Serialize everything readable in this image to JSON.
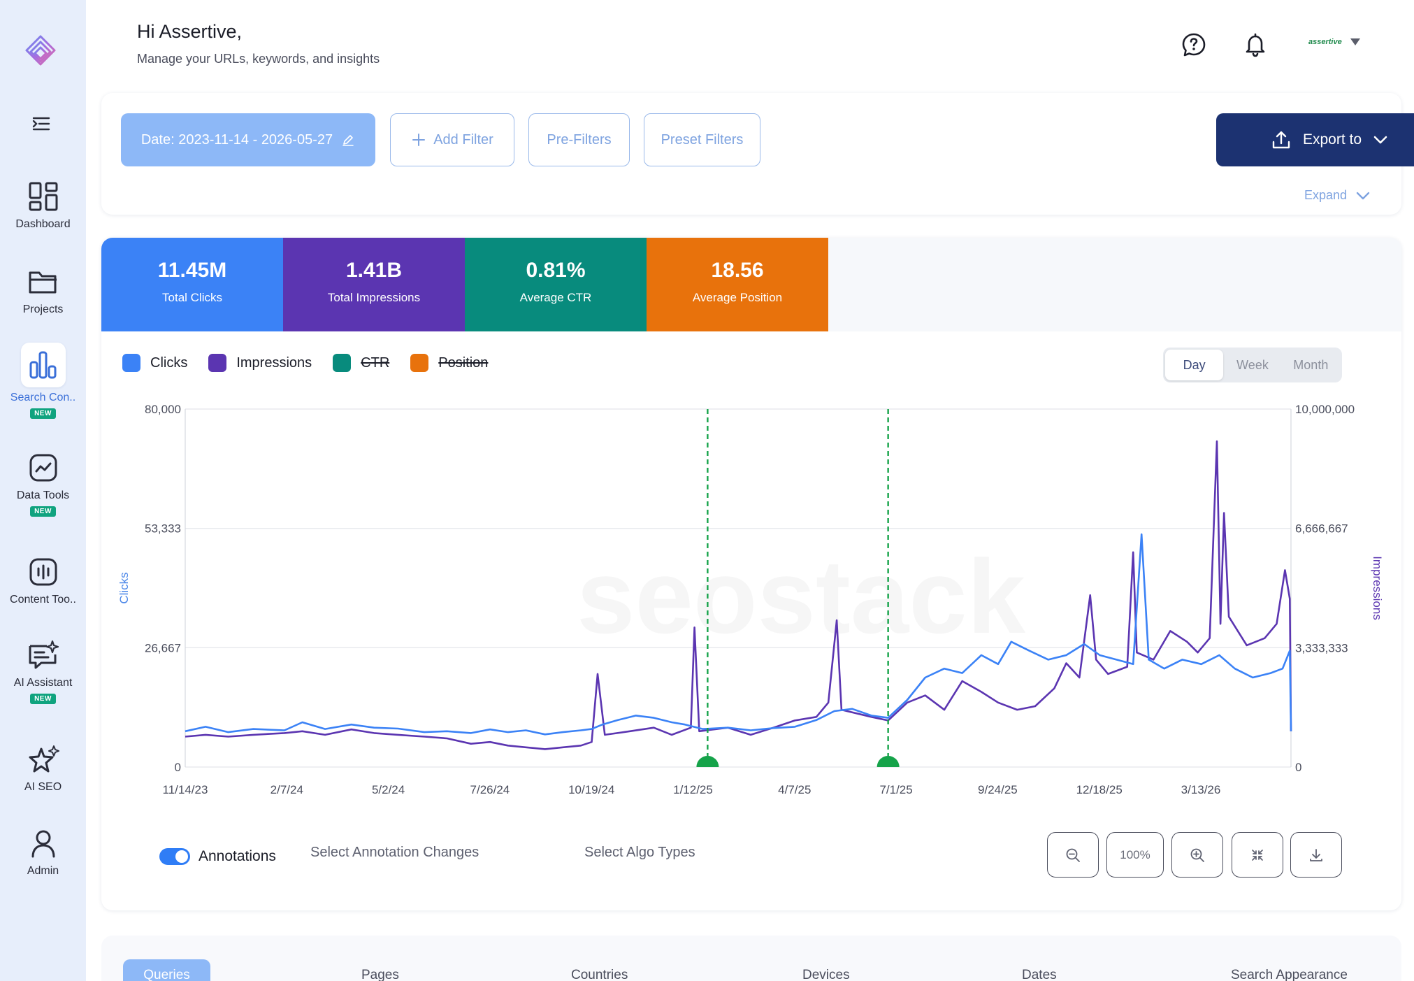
{
  "header": {
    "greeting": "Hi Assertive,",
    "subtitle": "Manage your URLs, keywords, and insights",
    "user_logo_text": "assertive"
  },
  "sidebar": {
    "items": [
      {
        "label": "Dashboard",
        "icon": "dashboard-icon",
        "badge": ""
      },
      {
        "label": "Projects",
        "icon": "folder-icon",
        "badge": ""
      },
      {
        "label": "Search Con..",
        "icon": "bar-chart-icon",
        "badge": "NEW",
        "active": true
      },
      {
        "label": "Data Tools",
        "icon": "trend-icon",
        "badge": "NEW"
      },
      {
        "label": "Content Too..",
        "icon": "audio-bars-icon",
        "badge": ""
      },
      {
        "label": "AI Assistant",
        "icon": "sparkle-chat-icon",
        "badge": "NEW"
      },
      {
        "label": "AI SEO",
        "icon": "sparkle-star-icon",
        "badge": ""
      },
      {
        "label": "Admin",
        "icon": "user-icon",
        "badge": ""
      }
    ]
  },
  "filters": {
    "date_label": "Date: 2023-11-14 - 2026-05-27",
    "add_filter": "Add Filter",
    "pre_filters": "Pre-Filters",
    "preset_filters": "Preset Filters",
    "export_label": "Export to",
    "expand_label": "Expand"
  },
  "kpis": [
    {
      "value": "11.45M",
      "label": "Total Clicks",
      "color": "#3b82f6"
    },
    {
      "value": "1.41B",
      "label": "Total Impressions",
      "color": "#5b35b1"
    },
    {
      "value": "0.81%",
      "label": "Average CTR",
      "color": "#088b7d"
    },
    {
      "value": "18.56",
      "label": "Average Position",
      "color": "#e8720c"
    }
  ],
  "legend": [
    {
      "label": "Clicks",
      "color": "#3b82f6",
      "active": true
    },
    {
      "label": "Impressions",
      "color": "#5b35b1",
      "active": true
    },
    {
      "label": "CTR",
      "color": "#088b7d",
      "active": false
    },
    {
      "label": "Position",
      "color": "#e8720c",
      "active": false
    }
  ],
  "granularity": {
    "options": [
      "Day",
      "Week",
      "Month"
    ],
    "selected": "Day"
  },
  "annotations": {
    "toggle_label": "Annotations",
    "toggle_on": true,
    "changes_placeholder": "Select Annotation Changes",
    "algo_placeholder": "Select Algo Types"
  },
  "zoom": {
    "level": "100%"
  },
  "tabs": [
    "Queries",
    "Pages",
    "Countries",
    "Devices",
    "Dates",
    "Search Appearance"
  ],
  "chart_data": {
    "type": "line",
    "x_ticks": [
      "11/14/23",
      "2/7/24",
      "5/2/24",
      "7/26/24",
      "10/19/24",
      "1/12/25",
      "4/7/25",
      "7/1/25",
      "9/24/25",
      "12/18/25",
      "3/13/26"
    ],
    "y_left": {
      "label": "Clicks",
      "ticks": [
        "0",
        "26,667",
        "53,333",
        "80,000"
      ],
      "range": [
        0,
        80000
      ]
    },
    "y_right": {
      "label": "Impressions",
      "ticks": [
        "0",
        "3,333,333",
        "6,666,667",
        "10,000,000"
      ],
      "range": [
        0,
        10000000
      ]
    },
    "x_range": [
      "2023-11-14",
      "2026-05-27"
    ],
    "annotation_dates": [
      "2025-01-24",
      "2025-06-24"
    ],
    "watermark": "seostack",
    "series": [
      {
        "name": "Clicks",
        "axis": "left",
        "color": "#3b82f6",
        "points": [
          [
            "2023-11-14",
            8000
          ],
          [
            "2023-12-01",
            9000
          ],
          [
            "2023-12-20",
            7800
          ],
          [
            "2024-01-10",
            8500
          ],
          [
            "2024-02-05",
            8200
          ],
          [
            "2024-02-20",
            10000
          ],
          [
            "2024-03-10",
            8500
          ],
          [
            "2024-04-01",
            9500
          ],
          [
            "2024-04-20",
            8800
          ],
          [
            "2024-05-10",
            8600
          ],
          [
            "2024-06-01",
            7800
          ],
          [
            "2024-06-20",
            8000
          ],
          [
            "2024-07-10",
            7600
          ],
          [
            "2024-07-26",
            8400
          ],
          [
            "2024-08-10",
            7800
          ],
          [
            "2024-08-25",
            8200
          ],
          [
            "2024-09-10",
            7300
          ],
          [
            "2024-09-25",
            7800
          ],
          [
            "2024-10-10",
            8200
          ],
          [
            "2024-10-19",
            8500
          ],
          [
            "2024-10-28",
            9500
          ],
          [
            "2024-11-10",
            10500
          ],
          [
            "2024-11-25",
            11500
          ],
          [
            "2024-12-10",
            11000
          ],
          [
            "2024-12-25",
            10000
          ],
          [
            "2025-01-05",
            9500
          ],
          [
            "2025-01-20",
            8500
          ],
          [
            "2025-02-10",
            8800
          ],
          [
            "2025-03-01",
            8200
          ],
          [
            "2025-03-20",
            8700
          ],
          [
            "2025-04-07",
            9000
          ],
          [
            "2025-04-25",
            10500
          ],
          [
            "2025-05-10",
            12500
          ],
          [
            "2025-05-25",
            13000
          ],
          [
            "2025-06-10",
            11500
          ],
          [
            "2025-06-24",
            11000
          ],
          [
            "2025-07-10",
            15000
          ],
          [
            "2025-07-25",
            20000
          ],
          [
            "2025-08-10",
            22000
          ],
          [
            "2025-08-25",
            21000
          ],
          [
            "2025-09-10",
            25000
          ],
          [
            "2025-09-24",
            23000
          ],
          [
            "2025-10-05",
            28000
          ],
          [
            "2025-10-20",
            26000
          ],
          [
            "2025-11-05",
            24000
          ],
          [
            "2025-11-20",
            25000
          ],
          [
            "2025-12-05",
            27500
          ],
          [
            "2025-12-18",
            25000
          ],
          [
            "2026-01-01",
            24000
          ],
          [
            "2026-01-15",
            23000
          ],
          [
            "2026-01-22",
            52000
          ],
          [
            "2026-01-28",
            24000
          ],
          [
            "2026-02-10",
            22000
          ],
          [
            "2026-02-25",
            24000
          ],
          [
            "2026-03-13",
            23000
          ],
          [
            "2026-03-28",
            25000
          ],
          [
            "2026-04-10",
            22000
          ],
          [
            "2026-04-25",
            20000
          ],
          [
            "2026-05-10",
            21000
          ],
          [
            "2026-05-20",
            22000
          ],
          [
            "2026-05-26",
            26000
          ],
          [
            "2026-05-27",
            8000
          ]
        ]
      },
      {
        "name": "Impressions",
        "axis": "right",
        "color": "#5b35b1",
        "points": [
          [
            "2023-11-14",
            850000
          ],
          [
            "2023-12-01",
            900000
          ],
          [
            "2023-12-20",
            850000
          ],
          [
            "2024-01-10",
            900000
          ],
          [
            "2024-02-05",
            950000
          ],
          [
            "2024-02-20",
            1000000
          ],
          [
            "2024-03-10",
            900000
          ],
          [
            "2024-04-01",
            1050000
          ],
          [
            "2024-04-20",
            950000
          ],
          [
            "2024-05-10",
            900000
          ],
          [
            "2024-06-01",
            850000
          ],
          [
            "2024-06-20",
            800000
          ],
          [
            "2024-07-10",
            650000
          ],
          [
            "2024-07-26",
            700000
          ],
          [
            "2024-08-10",
            600000
          ],
          [
            "2024-08-25",
            550000
          ],
          [
            "2024-09-10",
            500000
          ],
          [
            "2024-09-25",
            550000
          ],
          [
            "2024-10-10",
            600000
          ],
          [
            "2024-10-19",
            700000
          ],
          [
            "2024-10-24",
            2600000
          ],
          [
            "2024-10-30",
            900000
          ],
          [
            "2024-11-20",
            1000000
          ],
          [
            "2024-12-10",
            1100000
          ],
          [
            "2024-12-25",
            900000
          ],
          [
            "2025-01-10",
            1100000
          ],
          [
            "2025-01-13",
            3900000
          ],
          [
            "2025-01-17",
            1000000
          ],
          [
            "2025-02-10",
            1100000
          ],
          [
            "2025-03-01",
            900000
          ],
          [
            "2025-03-20",
            1100000
          ],
          [
            "2025-04-07",
            1300000
          ],
          [
            "2025-04-25",
            1400000
          ],
          [
            "2025-05-05",
            1800000
          ],
          [
            "2025-05-12",
            4100000
          ],
          [
            "2025-05-16",
            1600000
          ],
          [
            "2025-06-10",
            1400000
          ],
          [
            "2025-06-24",
            1300000
          ],
          [
            "2025-07-10",
            1800000
          ],
          [
            "2025-07-25",
            2000000
          ],
          [
            "2025-08-10",
            1600000
          ],
          [
            "2025-08-25",
            2400000
          ],
          [
            "2025-09-10",
            2100000
          ],
          [
            "2025-09-24",
            1800000
          ],
          [
            "2025-10-10",
            1600000
          ],
          [
            "2025-10-25",
            1700000
          ],
          [
            "2025-11-10",
            2200000
          ],
          [
            "2025-11-20",
            2900000
          ],
          [
            "2025-12-01",
            2500000
          ],
          [
            "2025-12-10",
            4800000
          ],
          [
            "2025-12-15",
            3000000
          ],
          [
            "2025-12-25",
            2600000
          ],
          [
            "2026-01-10",
            2800000
          ],
          [
            "2026-01-15",
            6000000
          ],
          [
            "2026-01-18",
            3200000
          ],
          [
            "2026-02-01",
            3000000
          ],
          [
            "2026-02-15",
            3800000
          ],
          [
            "2026-03-01",
            3500000
          ],
          [
            "2026-03-10",
            3200000
          ],
          [
            "2026-03-20",
            3600000
          ],
          [
            "2026-03-26",
            9100000
          ],
          [
            "2026-03-29",
            4000000
          ],
          [
            "2026-04-01",
            7100000
          ],
          [
            "2026-04-05",
            4200000
          ],
          [
            "2026-04-20",
            3400000
          ],
          [
            "2026-05-05",
            3600000
          ],
          [
            "2026-05-15",
            4000000
          ],
          [
            "2026-05-22",
            5500000
          ],
          [
            "2026-05-26",
            4700000
          ],
          [
            "2026-05-27",
            1000000
          ]
        ]
      }
    ]
  }
}
